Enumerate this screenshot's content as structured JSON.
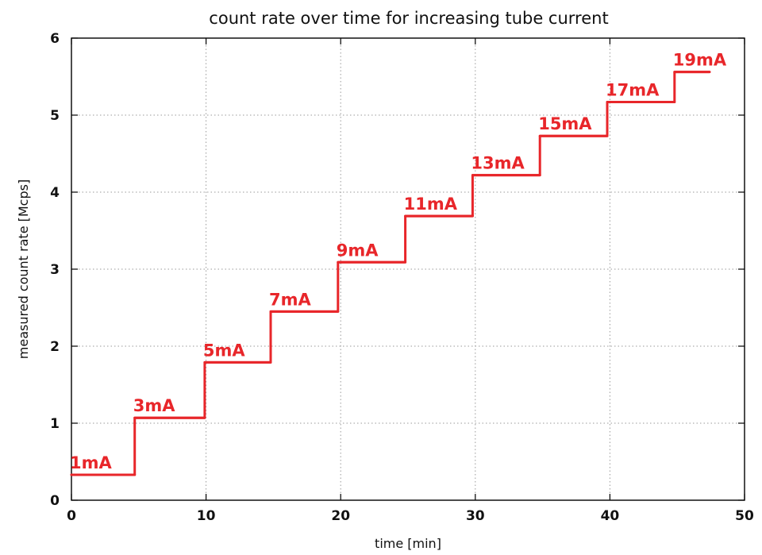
{
  "chart_data": {
    "type": "line",
    "title": "count rate over time for increasing tube current",
    "xlabel": "time [min]",
    "ylabel": "measured count rate [Mcps]",
    "xlim": [
      0,
      50
    ],
    "ylim": [
      0,
      6
    ],
    "xticks": [
      0,
      10,
      20,
      30,
      40,
      50
    ],
    "yticks": [
      0,
      1,
      2,
      3,
      4,
      5,
      6
    ],
    "xtick_labels": [
      "0",
      "10",
      "20",
      "30",
      "40",
      "50"
    ],
    "ytick_labels": [
      "0",
      "1",
      "2",
      "3",
      "4",
      "5",
      "6"
    ],
    "grid": true,
    "legend": "none",
    "series": [
      {
        "color": "#e8262a",
        "steps": [
          {
            "label": "1mA",
            "x_start": 0,
            "x_end": 4.7,
            "y": 0.33
          },
          {
            "label": "3mA",
            "x_start": 4.7,
            "x_end": 9.9,
            "y": 1.07
          },
          {
            "label": "5mA",
            "x_start": 9.9,
            "x_end": 14.8,
            "y": 1.79
          },
          {
            "label": "7mA",
            "x_start": 14.8,
            "x_end": 19.8,
            "y": 2.45
          },
          {
            "label": "9mA",
            "x_start": 19.8,
            "x_end": 24.8,
            "y": 3.09
          },
          {
            "label": "11mA",
            "x_start": 24.8,
            "x_end": 29.8,
            "y": 3.69
          },
          {
            "label": "13mA",
            "x_start": 29.8,
            "x_end": 34.8,
            "y": 4.22
          },
          {
            "label": "15mA",
            "x_start": 34.8,
            "x_end": 39.8,
            "y": 4.73
          },
          {
            "label": "17mA",
            "x_start": 39.8,
            "x_end": 44.8,
            "y": 5.17
          },
          {
            "label": "19mA",
            "x_start": 44.8,
            "x_end": 47.4,
            "y": 5.56
          }
        ]
      }
    ]
  }
}
